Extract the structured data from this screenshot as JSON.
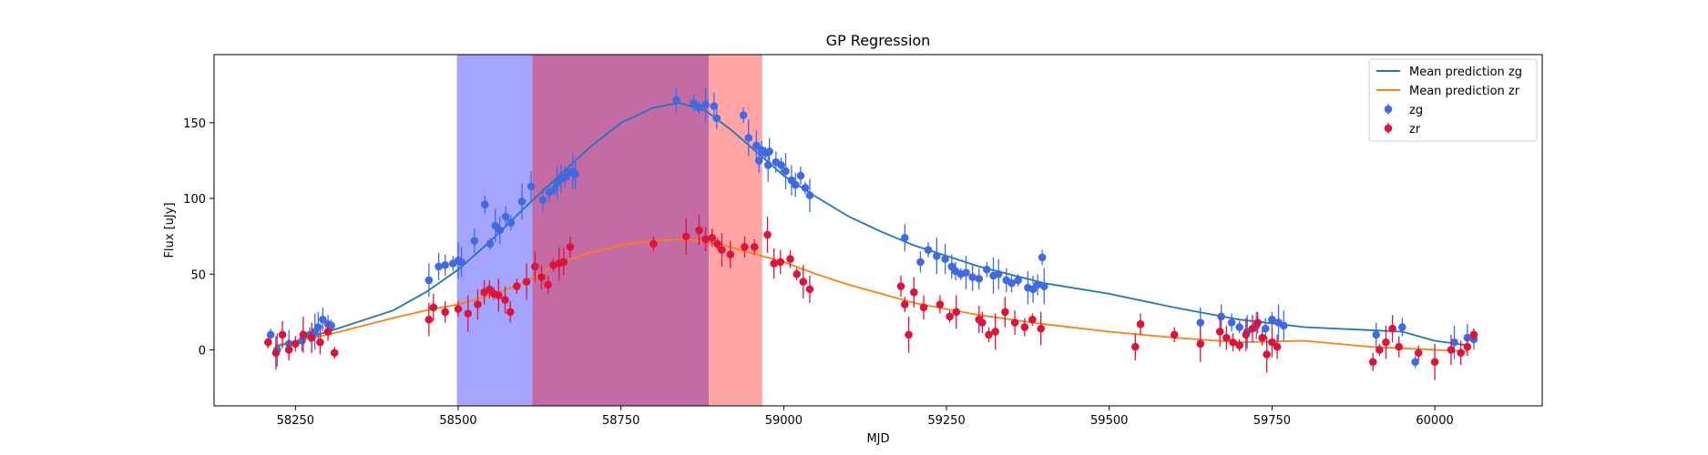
{
  "chart_data": {
    "type": "scatter",
    "title": "GP Regression",
    "xlabel": "MJD",
    "ylabel": "Flux [uJy]",
    "xlim": [
      58125,
      60165
    ],
    "ylim": [
      -37,
      195
    ],
    "xticks": [
      58250,
      58500,
      58750,
      59000,
      59250,
      59500,
      59750,
      60000
    ],
    "yticks": [
      0,
      50,
      100,
      150
    ],
    "grid": false,
    "legend_position": "top-right",
    "colors": {
      "zg": "#4169e1",
      "zr": "#dc143c",
      "mean_zg": "#1f77b4",
      "mean_zr": "#ff7f0e",
      "band_zg": "#a5a5ff",
      "band_overlap": "#c46ba6",
      "band_zr": "#ffa5a5"
    },
    "shaded_regions": [
      {
        "x0": 58498,
        "x1": 58614,
        "color": "#a5a5ff"
      },
      {
        "x0": 58614,
        "x1": 58885,
        "color": "#c46ba6"
      },
      {
        "x0": 58885,
        "x1": 58967,
        "color": "#ffa5a5"
      }
    ],
    "legend": [
      {
        "label": "Mean prediction zg",
        "kind": "line",
        "color": "#1f77b4"
      },
      {
        "label": "Mean prediction zr",
        "kind": "line",
        "color": "#ff7f0e"
      },
      {
        "label": "zg",
        "kind": "marker",
        "color": "#4169e1"
      },
      {
        "label": "zr",
        "kind": "marker",
        "color": "#dc143c"
      }
    ],
    "series": [
      {
        "name": "Mean prediction zg",
        "kind": "line",
        "color": "#1f77b4",
        "x": [
          58220,
          58300,
          58400,
          58450,
          58500,
          58550,
          58600,
          58650,
          58700,
          58750,
          58800,
          58840,
          58880,
          58920,
          58960,
          59000,
          59050,
          59100,
          59150,
          59200,
          59300,
          59400,
          59500,
          59600,
          59700,
          59800,
          59900,
          59950,
          60000,
          60050
        ],
        "y": [
          2,
          12,
          26,
          38,
          53,
          72,
          93,
          113,
          133,
          150,
          160,
          163,
          158,
          145,
          130,
          115,
          101,
          88,
          78,
          69,
          55,
          44,
          37,
          28,
          20,
          15,
          13,
          12,
          6,
          3
        ]
      },
      {
        "name": "Mean prediction zr",
        "kind": "line",
        "color": "#ff7f0e",
        "x": [
          58220,
          58300,
          58400,
          58450,
          58500,
          58550,
          58600,
          58650,
          58700,
          58750,
          58800,
          58850,
          58900,
          58950,
          59000,
          59050,
          59100,
          59150,
          59200,
          59300,
          59400,
          59500,
          59600,
          59700,
          59800,
          59900,
          60000,
          60050
        ],
        "y": [
          3,
          10,
          21,
          26,
          30,
          36,
          44,
          56,
          64,
          69,
          72,
          73,
          70,
          64,
          58,
          50,
          43,
          37,
          31,
          23,
          17,
          12,
          8,
          5,
          6,
          2,
          0,
          -1
        ]
      },
      {
        "name": "zg",
        "kind": "errorbar",
        "color": "#4169e1",
        "x": [
          58212,
          58222,
          58240,
          58260,
          58272,
          58280,
          58285,
          58292,
          58300,
          58305,
          58455,
          58470,
          58480,
          58492,
          58500,
          58505,
          58525,
          58541,
          58549,
          58557,
          58564,
          58573,
          58581,
          58598,
          58612,
          58630,
          58640,
          58648,
          58652,
          58658,
          58664,
          58670,
          58676,
          58680,
          58835,
          58862,
          58870,
          58880,
          58893,
          58897,
          58938,
          58946,
          58958,
          58962,
          58966,
          58972,
          58976,
          58978,
          58988,
          58996,
          59003,
          59012,
          59018,
          59026,
          59033,
          59040,
          59186,
          59210,
          59222,
          59235,
          59248,
          59258,
          59264,
          59272,
          59280,
          59290,
          59300,
          59312,
          59322,
          59330,
          59342,
          59350,
          59360,
          59375,
          59383,
          59390,
          59397,
          59400,
          59640,
          59672,
          59688,
          59700,
          59712,
          59726,
          59740,
          59750,
          59760,
          59768,
          59910,
          59950,
          59970,
          60030,
          60050,
          60060
        ],
        "y": [
          10,
          0,
          4,
          6,
          10,
          12,
          15,
          20,
          17,
          16,
          46,
          55,
          56,
          57,
          59,
          58,
          72,
          96,
          70,
          82,
          79,
          88,
          84,
          98,
          108,
          99,
          104,
          106,
          110,
          113,
          114,
          117,
          118,
          116,
          165,
          163,
          160,
          162,
          161,
          153,
          155,
          140,
          135,
          125,
          132,
          130,
          122,
          131,
          124,
          122,
          118,
          112,
          109,
          115,
          107,
          102,
          74,
          58,
          66,
          62,
          60,
          55,
          52,
          50,
          51,
          48,
          47,
          53,
          49,
          50,
          46,
          44,
          46,
          41,
          40,
          43,
          61,
          42,
          18,
          22,
          18,
          15,
          12,
          16,
          14,
          20,
          18,
          16,
          10,
          15,
          -8,
          5,
          8,
          7
        ]
      },
      {
        "name": "zr",
        "kind": "errorbar",
        "color": "#dc143c",
        "x": [
          58208,
          58220,
          58230,
          58240,
          58250,
          58262,
          58275,
          58288,
          58300,
          58310,
          58455,
          58462,
          58480,
          58500,
          58515,
          58530,
          58540,
          58548,
          58555,
          58562,
          58572,
          58580,
          58590,
          58605,
          58618,
          58628,
          58638,
          58646,
          58655,
          58662,
          58672,
          58800,
          58850,
          58870,
          58880,
          58890,
          58898,
          58905,
          58918,
          58940,
          58955,
          58975,
          58985,
          58995,
          59010,
          59020,
          59030,
          59040,
          59180,
          59186,
          59192,
          59200,
          59215,
          59240,
          59255,
          59265,
          59300,
          59305,
          59315,
          59325,
          59340,
          59355,
          59370,
          59382,
          59395,
          59540,
          59548,
          59600,
          59640,
          59670,
          59680,
          59690,
          59700,
          59710,
          59720,
          59728,
          59735,
          59742,
          59750,
          59758,
          59905,
          59915,
          59925,
          59935,
          59945,
          59975,
          60000,
          60025,
          60040,
          60050,
          60060
        ],
        "y": [
          5,
          -2,
          10,
          0,
          4,
          10,
          8,
          5,
          12,
          -2,
          20,
          28,
          25,
          27,
          24,
          30,
          38,
          40,
          37,
          36,
          33,
          25,
          42,
          45,
          55,
          48,
          43,
          56,
          57,
          58,
          68,
          70,
          75,
          79,
          73,
          74,
          70,
          66,
          63,
          68,
          68,
          76,
          57,
          58,
          60,
          50,
          45,
          40,
          42,
          30,
          10,
          38,
          28,
          30,
          22,
          25,
          20,
          18,
          10,
          12,
          25,
          18,
          15,
          20,
          14,
          2,
          17,
          10,
          4,
          12,
          8,
          5,
          3,
          10,
          14,
          18,
          8,
          -3,
          5,
          2,
          -8,
          0,
          5,
          14,
          2,
          -2,
          -8,
          0,
          -2,
          2,
          10
        ]
      }
    ]
  }
}
